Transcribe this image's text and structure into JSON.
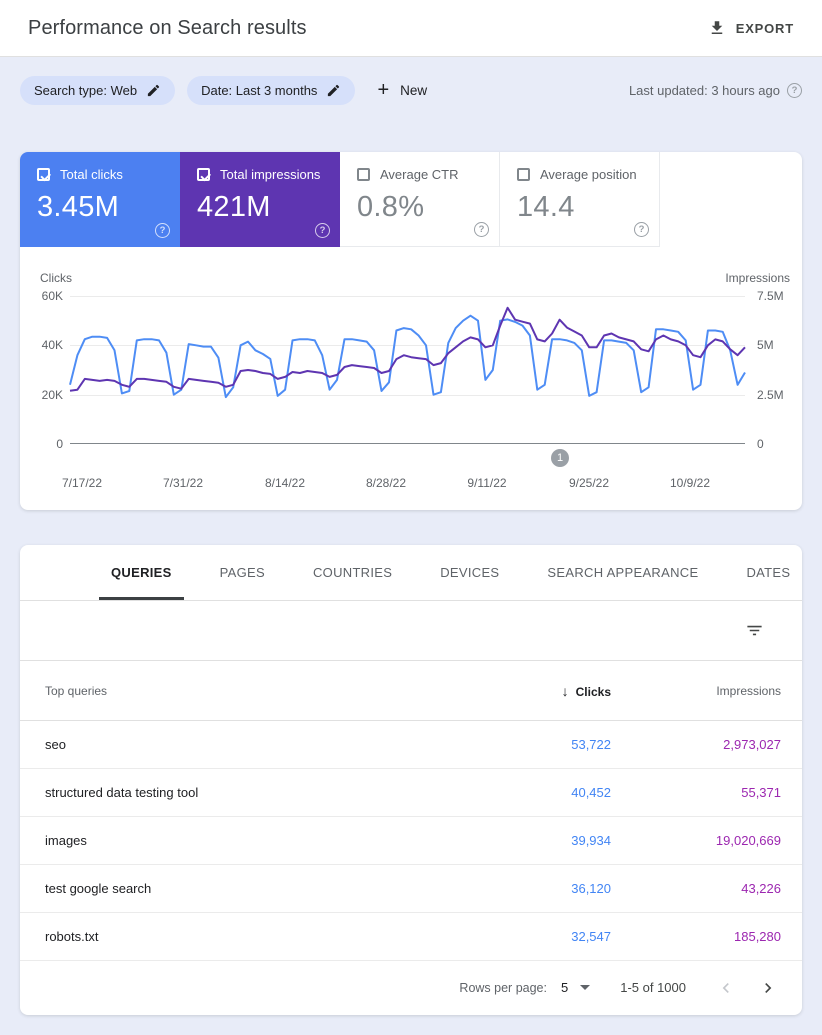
{
  "header": {
    "title": "Performance on Search results",
    "export_label": "EXPORT"
  },
  "filters": {
    "search_type_chip": "Search type: Web",
    "date_chip": "Date: Last 3 months",
    "new_label": "New",
    "last_updated": "Last updated: 3 hours ago",
    "help_glyph": "?"
  },
  "metrics": {
    "cards": [
      {
        "label": "Total clicks",
        "value": "3.45M",
        "checked": true,
        "color": "#4c80f1"
      },
      {
        "label": "Total impressions",
        "value": "421M",
        "checked": true,
        "color": "#5e35b1"
      },
      {
        "label": "Average CTR",
        "value": "0.8%",
        "checked": false,
        "color": "#ffffff"
      },
      {
        "label": "Average position",
        "value": "14.4",
        "checked": false,
        "color": "#ffffff"
      }
    ],
    "help_glyph": "?"
  },
  "chart_data": {
    "type": "line",
    "left_axis": {
      "label": "Clicks",
      "ticks": [
        "60K",
        "40K",
        "20K",
        "0"
      ],
      "min": 0,
      "max": 60000
    },
    "right_axis": {
      "label": "Impressions",
      "ticks": [
        "7.5M",
        "5M",
        "2.5M",
        "0"
      ],
      "min": 0,
      "max": 7500000
    },
    "x_tick_labels": [
      "7/17/22",
      "7/31/22",
      "8/14/22",
      "8/28/22",
      "9/11/22",
      "9/25/22",
      "10/9/22"
    ],
    "grid": true,
    "legend_position": "none",
    "series": [
      {
        "name": "Total clicks",
        "axis": "left",
        "color": "#4e8df5",
        "values": [
          24000,
          36000,
          42500,
          43500,
          43500,
          43000,
          38000,
          20500,
          21500,
          42000,
          42500,
          42500,
          42000,
          37000,
          20000,
          22000,
          40500,
          40000,
          39500,
          39500,
          35000,
          19000,
          23000,
          40000,
          41500,
          38000,
          36500,
          34500,
          19500,
          22000,
          42000,
          42500,
          42500,
          42000,
          36000,
          22000,
          26000,
          42500,
          42500,
          42000,
          41500,
          38000,
          21500,
          25000,
          46000,
          47000,
          46500,
          44000,
          40000,
          20000,
          21000,
          41000,
          47000,
          50000,
          52000,
          50000,
          26000,
          30000,
          50000,
          50500,
          49500,
          48000,
          44000,
          22000,
          24000,
          42500,
          42500,
          42000,
          41000,
          38000,
          19500,
          21000,
          42000,
          42000,
          41500,
          41000,
          38000,
          21000,
          23000,
          46500,
          46500,
          46000,
          45500,
          42000,
          22000,
          24000,
          46000,
          46000,
          45500,
          38000,
          24000,
          29000
        ]
      },
      {
        "name": "Total impressions",
        "axis": "right",
        "color": "#5e35b1",
        "values": [
          2700000,
          2750000,
          3300000,
          3250000,
          3200000,
          3250000,
          3200000,
          3000000,
          2900000,
          3300000,
          3300000,
          3250000,
          3200000,
          3150000,
          2900000,
          2800000,
          3300000,
          3250000,
          3200000,
          3150000,
          3100000,
          2900000,
          3000000,
          3700000,
          3750000,
          3700000,
          3600000,
          3550000,
          3300000,
          3400000,
          3650000,
          3600000,
          3700000,
          3650000,
          3600000,
          3400000,
          3500000,
          3900000,
          4000000,
          3950000,
          3900000,
          3850000,
          3600000,
          3700000,
          4300000,
          4500000,
          4400000,
          4350000,
          4300000,
          4000000,
          4100000,
          4600000,
          4900000,
          5200000,
          5400000,
          5300000,
          4900000,
          5000000,
          6000000,
          6900000,
          6300000,
          6200000,
          6100000,
          5300000,
          5200000,
          5600000,
          6300000,
          5900000,
          5700000,
          5500000,
          4900000,
          4900000,
          5500000,
          5600000,
          5400000,
          5300000,
          5200000,
          4800000,
          4700000,
          5300000,
          5500000,
          5300000,
          5200000,
          5000000,
          4500000,
          4400000,
          5000000,
          5300000,
          5200000,
          4800000,
          4500000,
          4900000
        ]
      }
    ],
    "annotation": {
      "label": "1",
      "position_fraction": 0.726
    }
  },
  "tabs": [
    {
      "label": "QUERIES",
      "active": true
    },
    {
      "label": "PAGES",
      "active": false
    },
    {
      "label": "COUNTRIES",
      "active": false
    },
    {
      "label": "DEVICES",
      "active": false
    },
    {
      "label": "SEARCH APPEARANCE",
      "active": false
    },
    {
      "label": "DATES",
      "active": false
    }
  ],
  "table": {
    "columns": {
      "queries": "Top queries",
      "clicks": "Clicks",
      "impressions": "Impressions"
    },
    "sort": {
      "column": "clicks",
      "direction": "desc",
      "arrow_glyph": "↓"
    },
    "value_colors": {
      "clicks": "#4285f4",
      "impressions": "#9c27b0"
    },
    "rows": [
      {
        "query": "seo",
        "clicks": "53,722",
        "impressions": "2,973,027"
      },
      {
        "query": "structured data testing tool",
        "clicks": "40,452",
        "impressions": "55,371"
      },
      {
        "query": "images",
        "clicks": "39,934",
        "impressions": "19,020,669"
      },
      {
        "query": "test google search",
        "clicks": "36,120",
        "impressions": "43,226"
      },
      {
        "query": "robots.txt",
        "clicks": "32,547",
        "impressions": "185,280"
      }
    ]
  },
  "pagination": {
    "rows_per_page_label": "Rows per page:",
    "rows_per_page_value": "5",
    "range": "1-5 of 1000"
  }
}
